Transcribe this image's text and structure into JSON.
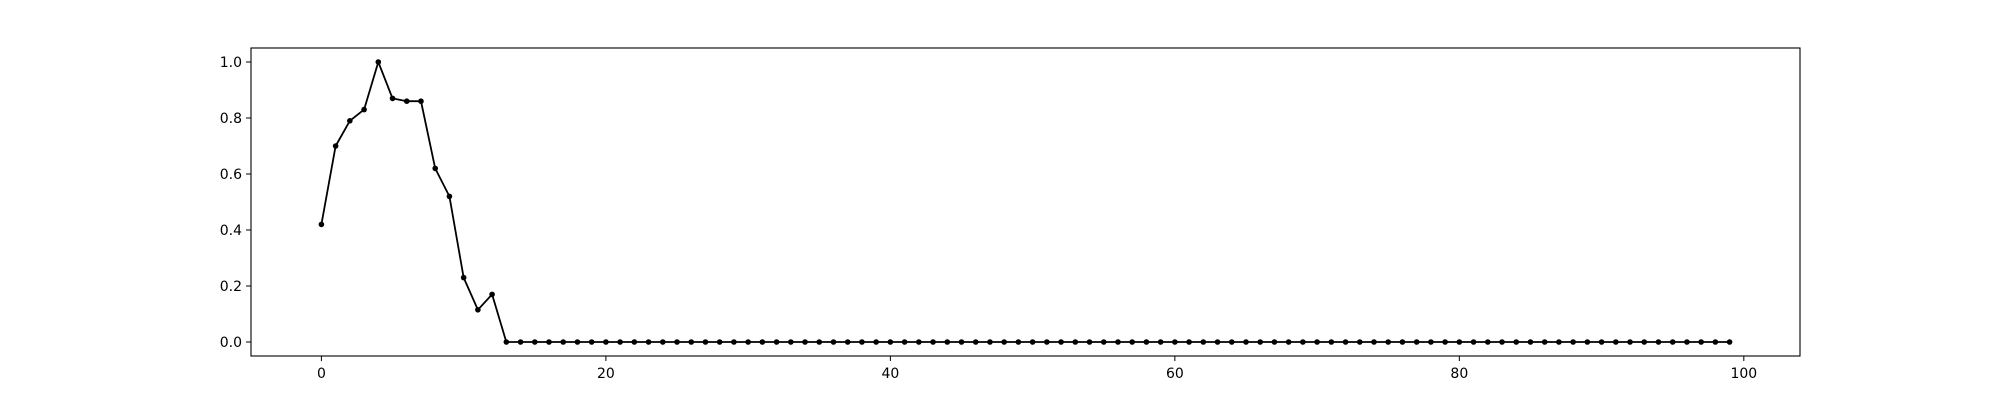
{
  "chart_data": {
    "type": "line",
    "title": "",
    "xlabel": "",
    "ylabel": "",
    "xlim": [
      -4.95,
      103.95
    ],
    "ylim": [
      -0.05,
      1.05
    ],
    "x_ticks": [
      0,
      20,
      40,
      60,
      80,
      100
    ],
    "y_ticks": [
      0.0,
      0.2,
      0.4,
      0.6,
      0.8,
      1.0
    ],
    "x_tick_labels": [
      "0",
      "20",
      "40",
      "60",
      "80",
      "100"
    ],
    "y_tick_labels": [
      "0.0",
      "0.2",
      "0.4",
      "0.6",
      "0.8",
      "1.0"
    ],
    "grid": false,
    "legend": "none",
    "line_color": "#000000",
    "marker": "dot",
    "series": [
      {
        "x": [
          0,
          1,
          2,
          3,
          4,
          5,
          6,
          7,
          8,
          9,
          10,
          11,
          12,
          13,
          14,
          15,
          16,
          17,
          18,
          19,
          20,
          21,
          22,
          23,
          24,
          25,
          26,
          27,
          28,
          29,
          30,
          31,
          32,
          33,
          34,
          35,
          36,
          37,
          38,
          39,
          40,
          41,
          42,
          43,
          44,
          45,
          46,
          47,
          48,
          49,
          50,
          51,
          52,
          53,
          54,
          55,
          56,
          57,
          58,
          59,
          60,
          61,
          62,
          63,
          64,
          65,
          66,
          67,
          68,
          69,
          70,
          71,
          72,
          73,
          74,
          75,
          76,
          77,
          78,
          79,
          80,
          81,
          82,
          83,
          84,
          85,
          86,
          87,
          88,
          89,
          90,
          91,
          92,
          93,
          94,
          95,
          96,
          97,
          98,
          99
        ],
        "values": [
          0.42,
          0.7,
          0.79,
          0.83,
          1.0,
          0.87,
          0.86,
          0.86,
          0.62,
          0.52,
          0.23,
          0.115,
          0.17,
          0,
          0,
          0,
          0,
          0,
          0,
          0,
          0,
          0,
          0,
          0,
          0,
          0,
          0,
          0,
          0,
          0,
          0,
          0,
          0,
          0,
          0,
          0,
          0,
          0,
          0,
          0,
          0,
          0,
          0,
          0,
          0,
          0,
          0,
          0,
          0,
          0,
          0,
          0,
          0,
          0,
          0,
          0,
          0,
          0,
          0,
          0,
          0,
          0,
          0,
          0,
          0,
          0,
          0,
          0,
          0,
          0,
          0,
          0,
          0,
          0,
          0,
          0,
          0,
          0,
          0,
          0,
          0,
          0,
          0,
          0,
          0,
          0,
          0,
          0,
          0,
          0,
          0,
          0,
          0,
          0,
          0,
          0,
          0,
          0,
          0,
          0
        ]
      }
    ]
  }
}
